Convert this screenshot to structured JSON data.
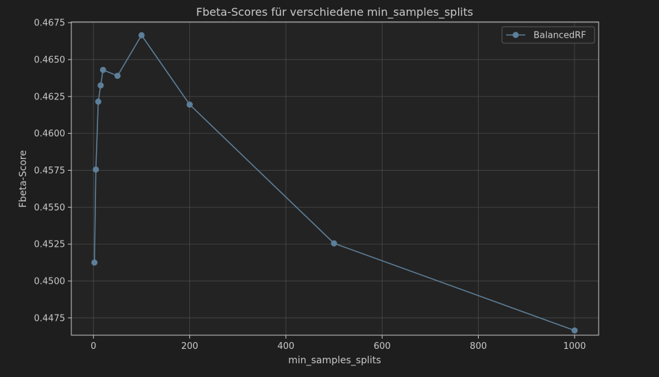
{
  "chart_data": {
    "type": "line",
    "title": "Fbeta-Scores für verschiedene min_samples_splits",
    "xlabel": "min_samples_splits",
    "ylabel": "Fbeta-Score",
    "xlim": [
      -46,
      1050
    ],
    "ylim": [
      0.44633,
      0.46755
    ],
    "xticks": [
      0,
      200,
      400,
      600,
      800,
      1000
    ],
    "xtick_labels": [
      "0",
      "200",
      "400",
      "600",
      "800",
      "1000"
    ],
    "yticks": [
      0.4475,
      0.45,
      0.4525,
      0.455,
      0.4575,
      0.46,
      0.4625,
      0.465,
      0.4675
    ],
    "ytick_labels": [
      "0.4475",
      "0.4500",
      "0.4525",
      "0.4550",
      "0.4575",
      "0.4600",
      "0.4625",
      "0.4650",
      "0.4675"
    ],
    "grid": true,
    "legend_position": "upper right",
    "series": [
      {
        "name": "BalancedRF",
        "color": "#5d7f99",
        "marker": "circle",
        "x": [
          2,
          5,
          10,
          15,
          20,
          50,
          100,
          200,
          500,
          1000
        ],
        "y": [
          0.45125,
          0.45755,
          0.46215,
          0.46325,
          0.4643,
          0.4639,
          0.46665,
          0.46195,
          0.45255,
          0.44665
        ]
      }
    ]
  },
  "colors": {
    "background": "#1e1e1e",
    "plot_background": "#232323",
    "grid": "#4a4a4a",
    "spine": "#cccccc",
    "text": "#c8c8c8",
    "line": "#5d7f99"
  }
}
